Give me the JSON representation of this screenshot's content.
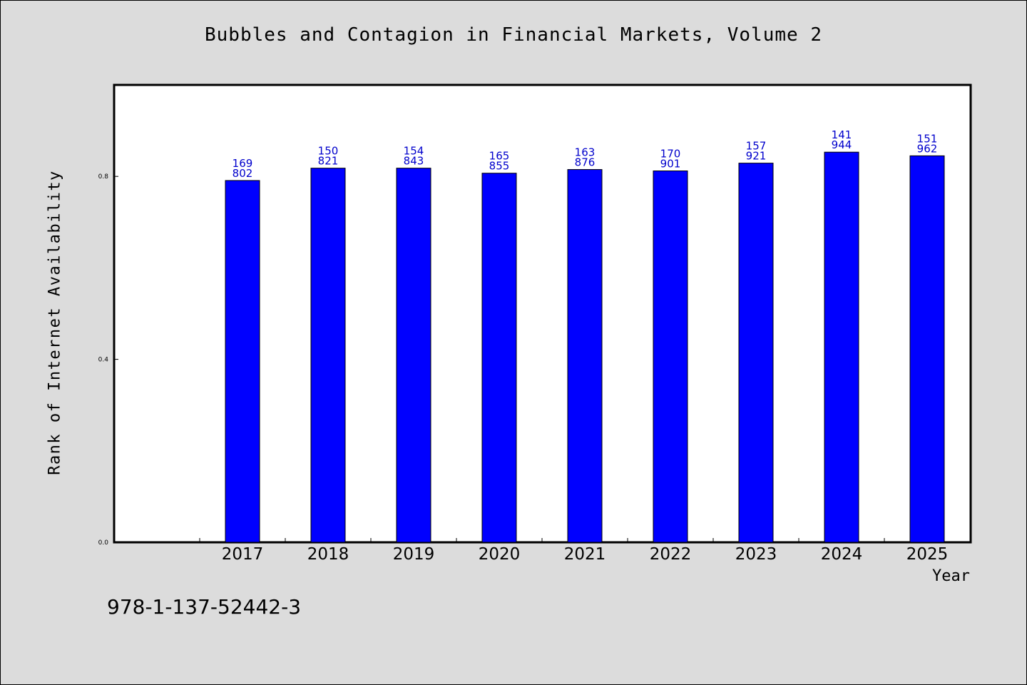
{
  "chart_data": {
    "type": "bar",
    "title": "Bubbles and Contagion in Financial Markets, Volume 2",
    "xlabel": "Year",
    "ylabel": "Rank of Internet Availability",
    "categories": [
      "2017",
      "2018",
      "2019",
      "2020",
      "2021",
      "2022",
      "2023",
      "2024",
      "2025"
    ],
    "values": [
      0.791,
      0.818,
      0.818,
      0.807,
      0.815,
      0.812,
      0.829,
      0.853,
      0.845
    ],
    "bar_labels_top": [
      "169",
      "150",
      "154",
      "165",
      "163",
      "170",
      "157",
      "141",
      "151"
    ],
    "bar_labels_bottom": [
      "802",
      "821",
      "843",
      "855",
      "876",
      "901",
      "921",
      "944",
      "962"
    ],
    "yticks": [
      "0.0",
      "0.4",
      "0.8"
    ],
    "ylim": [
      0,
      1.0
    ],
    "grid": false,
    "legend": "none",
    "bar_color": "#0000ff",
    "label_color": "#0000cc"
  },
  "footer": {
    "isbn": "978-1-137-52442-3"
  }
}
